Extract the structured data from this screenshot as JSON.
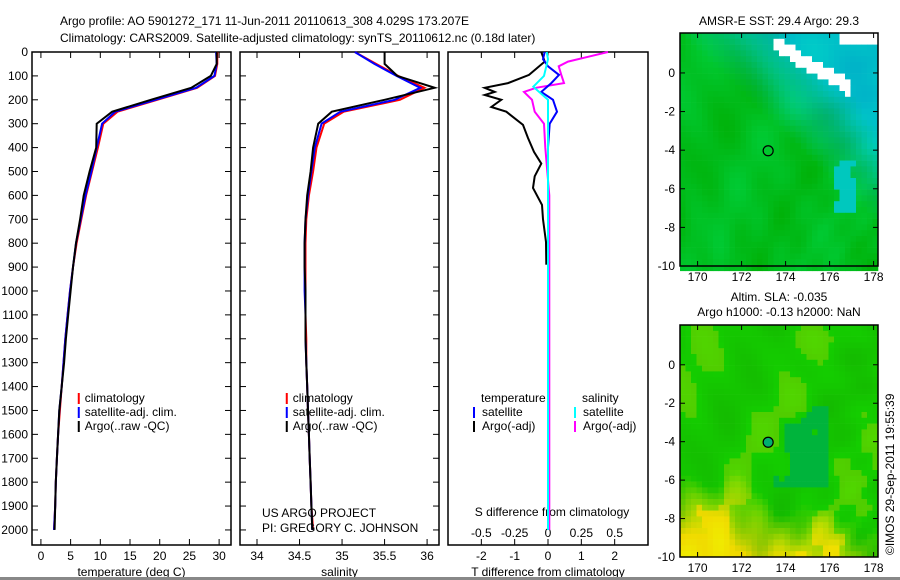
{
  "title": {
    "line1": "Argo profile: AO 5901272_171 11-Jun-2011 20110613_308 4.029S 173.207E",
    "line2": "Climatology: CARS2009. Satellite-adjusted climatology: synTS_20110612.nc (0.18d later)"
  },
  "credit": {
    "line1": "US ARGO PROJECT",
    "line2": "PI: GREGORY C. JOHNSON"
  },
  "timestamp": "©IMOS 29-Sep-2011 19:55:39",
  "colors": {
    "climatology": "#ff0000",
    "satellite": "#0000ff",
    "argo": "#000000",
    "s_satellite": "#00ffff",
    "s_argo": "#ff00ff"
  },
  "chart_data": [
    {
      "type": "line",
      "id": "temperature",
      "xlabel": "temperature (deg C)",
      "ylabel": "",
      "xlim": [
        -1.5,
        32
      ],
      "ylim": [
        0,
        2063
      ],
      "xticks": [
        0,
        5,
        10,
        15,
        20,
        25,
        30
      ],
      "yticks": [
        0,
        100,
        200,
        300,
        400,
        500,
        600,
        700,
        800,
        900,
        1000,
        1100,
        1200,
        1300,
        1400,
        1500,
        1600,
        1700,
        1800,
        1900,
        2000
      ],
      "legend": [
        "climatology",
        "satellite-adj. clim.",
        "Argo(..raw -QC)"
      ],
      "depth": [
        0,
        50,
        100,
        150,
        200,
        250,
        300,
        400,
        500,
        600,
        700,
        800,
        900,
        1000,
        1100,
        1200,
        1300,
        1400,
        1500,
        1600,
        1700,
        1800,
        1900,
        2000
      ],
      "series": [
        {
          "name": "climatology",
          "color": "#ff0000",
          "values": [
            29.7,
            29.7,
            29.3,
            26.3,
            19.6,
            12.9,
            10.5,
            9.6,
            8.6,
            7.6,
            6.8,
            6.0,
            5.4,
            4.9,
            4.5,
            4.1,
            3.8,
            3.5,
            3.2,
            2.9,
            2.7,
            2.5,
            2.4,
            2.2
          ]
        },
        {
          "name": "satellite-adj. clim.",
          "color": "#0000ff",
          "values": [
            29.5,
            29.6,
            29.2,
            26.1,
            19.3,
            12.5,
            10.3,
            9.4,
            8.5,
            7.5,
            6.7,
            5.9,
            5.4,
            4.9,
            4.5,
            4.1,
            3.8,
            3.5,
            3.1,
            2.9,
            2.7,
            2.5,
            2.4,
            2.2
          ]
        },
        {
          "name": "Argo(..raw -QC)",
          "color": "#000000",
          "values": [
            29.6,
            29.6,
            28.6,
            25.3,
            18.5,
            12.0,
            9.4,
            9.3,
            8.2,
            7.2,
            6.6,
            5.9,
            5.4,
            5.0,
            4.6,
            4.2,
            3.9,
            3.5,
            3.1,
            2.9,
            2.7,
            2.5,
            2.4,
            2.3
          ]
        }
      ]
    },
    {
      "type": "line",
      "id": "salinity",
      "xlabel": "salinity",
      "xlim": [
        33.8,
        36.14
      ],
      "ylim": [
        0,
        2063
      ],
      "xticks": [
        34,
        34.5,
        35,
        35.5,
        36
      ],
      "legend": [
        "climatology",
        "satellite-adj. clim.",
        "Argo(..raw -QC)"
      ],
      "depth": [
        0,
        50,
        100,
        150,
        200,
        250,
        300,
        400,
        500,
        600,
        700,
        800,
        900,
        1000,
        1100,
        1200,
        1300,
        1400,
        1500,
        1600,
        1700,
        1800,
        1900,
        2000
      ],
      "series": [
        {
          "name": "climatology",
          "color": "#ff0000",
          "values": [
            35.15,
            35.4,
            35.66,
            35.97,
            35.68,
            35.02,
            34.79,
            34.7,
            34.66,
            34.61,
            34.58,
            34.57,
            34.57,
            34.57,
            34.57,
            34.58,
            34.58,
            34.59,
            34.6,
            34.61,
            34.62,
            34.63,
            34.64,
            34.66
          ]
        },
        {
          "name": "satellite-adj. clim.",
          "color": "#0000ff",
          "values": [
            35.15,
            35.38,
            35.64,
            35.92,
            35.62,
            34.98,
            34.76,
            34.68,
            34.64,
            34.6,
            34.57,
            34.56,
            34.56,
            34.56,
            34.57,
            34.57,
            34.58,
            34.59,
            34.6,
            34.61,
            34.62,
            34.63,
            34.64,
            34.65
          ]
        },
        {
          "name": "Argo(..raw -QC)",
          "color": "#000000",
          "values": [
            35.5,
            35.5,
            35.65,
            36.09,
            35.5,
            34.88,
            34.72,
            34.66,
            34.63,
            34.59,
            34.57,
            34.56,
            34.56,
            34.57,
            34.57,
            34.57,
            34.58,
            34.59,
            34.6,
            34.61,
            34.62,
            34.63,
            34.64,
            34.65
          ]
        }
      ]
    },
    {
      "type": "line",
      "id": "difference",
      "xlabel": "T difference from climatology",
      "x2label": "S difference from climatology",
      "xlim": [
        -3,
        3
      ],
      "x2lim": [
        -0.75,
        0.75
      ],
      "ylim": [
        0,
        2063
      ],
      "xticks": [
        -2,
        -1,
        0,
        1,
        2
      ],
      "x2ticks": [
        "-0.5",
        "-0.25",
        "0",
        "0.25",
        "0.5"
      ],
      "legend": {
        "temperature_header": "temperature",
        "salinity_header": "salinity",
        "t_sat": "satellite",
        "t_argo": "Argo(-adj)",
        "s_sat": "satellite",
        "s_argo": "Argo(-adj)"
      },
      "series": [
        {
          "name": "S Argo(-adj)",
          "axis": "S",
          "color": "#ff00ff",
          "depth": [
            0,
            20,
            40,
            60,
            96,
            130,
            150,
            167,
            200,
            250,
            300,
            400,
            600,
            1000,
            2000
          ],
          "values": [
            0.45,
            0.3,
            0.15,
            0.08,
            0.1,
            0.12,
            -0.09,
            -0.18,
            -0.12,
            -0.1,
            -0.03,
            -0.02,
            0.01,
            0.01,
            0.01
          ]
        },
        {
          "name": "T Argo(-adj)",
          "axis": "T",
          "color": "#000000",
          "depth": [
            0,
            40,
            96,
            130,
            150,
            167,
            180,
            200,
            230,
            250,
            305,
            360,
            418,
            467,
            520,
            569,
            640,
            700,
            795,
            890
          ],
          "values": [
            -0.2,
            -0.1,
            -0.57,
            -1.2,
            -1.9,
            -1.6,
            -1.9,
            -1.4,
            -1.7,
            -1.25,
            -0.75,
            -0.6,
            -0.42,
            -0.2,
            -0.4,
            -0.45,
            -0.18,
            -0.15,
            -0.06,
            -0.05
          ]
        },
        {
          "name": "T satellite",
          "axis": "T",
          "color": "#0000ff",
          "depth": [
            0,
            30,
            60,
            96,
            130,
            167,
            200,
            250,
            300,
            400,
            2000
          ],
          "values": [
            -0.1,
            -0.15,
            0,
            0.33,
            0.1,
            -0.2,
            0.15,
            0.27,
            0.05,
            0,
            0
          ]
        },
        {
          "name": "S satellite",
          "axis": "S",
          "color": "#00ffff",
          "depth": [
            0,
            30,
            100,
            145,
            200,
            300,
            2000
          ],
          "values": [
            -0.01,
            0,
            -0.03,
            -0.11,
            0,
            0,
            0
          ]
        }
      ]
    },
    {
      "type": "heatmap",
      "id": "sst-map",
      "title": "AMSR-E SST: 29.4  Argo: 29.3",
      "xlim": [
        169.2,
        178.2
      ],
      "ylim": [
        -10,
        2.07
      ],
      "xticks": [
        170,
        172,
        174,
        176,
        178
      ],
      "yticks": [
        0,
        -2,
        -4,
        -6,
        -8,
        -10
      ],
      "marker": {
        "lon": 173.207,
        "lat": -4.029
      }
    },
    {
      "type": "heatmap",
      "id": "sla-map",
      "title_line1": "Altim. SLA: -0.035",
      "title_line2": "Argo h1000: -0.13 h2000: NaN",
      "xlim": [
        169.2,
        178.2
      ],
      "ylim": [
        -10,
        2.07
      ],
      "xticks": [
        170,
        172,
        174,
        176,
        178
      ],
      "yticks": [
        0,
        -2,
        -4,
        -6,
        -8,
        -10
      ],
      "marker": {
        "lon": 173.207,
        "lat": -4.029
      }
    }
  ]
}
